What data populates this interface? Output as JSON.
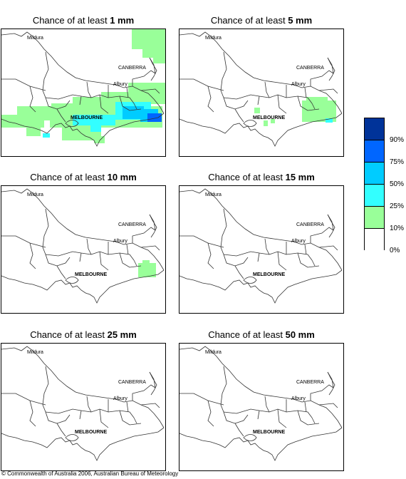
{
  "panels": [
    {
      "title_prefix": "Chance of at least ",
      "amount": "1 mm"
    },
    {
      "title_prefix": "Chance of at least ",
      "amount": "5 mm"
    },
    {
      "title_prefix": "Chance of at least ",
      "amount": "10 mm"
    },
    {
      "title_prefix": "Chance of at least ",
      "amount": "15 mm"
    },
    {
      "title_prefix": "Chance of at least ",
      "amount": "25 mm"
    },
    {
      "title_prefix": "Chance of at least ",
      "amount": "50 mm"
    }
  ],
  "places": {
    "mildura": "Mildura",
    "canberra": "CANBERRA",
    "albury": "Albury",
    "melbourne": "MELBOURNE"
  },
  "legend": {
    "labels": [
      "90%",
      "75%",
      "50%",
      "25%",
      "10%",
      "0%"
    ],
    "colors": [
      "#003399",
      "#0066ff",
      "#00ccff",
      "#33ffff",
      "#99ff99",
      "#ffffff"
    ]
  },
  "colors": {
    "green": "#99ff99",
    "cyan": "#33ffff",
    "sky": "#00ccff",
    "blue": "#0066ff"
  },
  "copyright": "© Commonwealth of Australia 2006, Australian Bureau of Meteorology"
}
